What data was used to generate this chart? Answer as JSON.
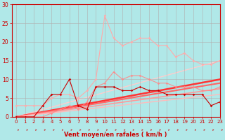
{
  "xlabel": "Vent moyen/en rafales ( km/h )",
  "bg_color": "#b0e8e8",
  "grid_color": "#b0b0b0",
  "xlim": [
    -0.5,
    23
  ],
  "ylim": [
    0,
    30
  ],
  "yticks": [
    0,
    5,
    10,
    15,
    20,
    25,
    30
  ],
  "xticks": [
    0,
    1,
    2,
    3,
    4,
    5,
    6,
    7,
    8,
    9,
    10,
    11,
    12,
    13,
    14,
    15,
    16,
    17,
    18,
    19,
    20,
    21,
    22,
    23
  ],
  "series": [
    {
      "x": [
        0,
        1,
        2,
        3,
        4,
        5,
        6,
        7,
        8,
        9,
        10,
        11,
        12,
        13,
        14,
        15,
        16,
        17,
        18,
        19,
        20,
        21,
        22,
        23
      ],
      "y": [
        0,
        0,
        0,
        3,
        6,
        6,
        10,
        3,
        2,
        8,
        8,
        8,
        7,
        7,
        8,
        7,
        7,
        6,
        6,
        6,
        6,
        6,
        3,
        4
      ],
      "color": "#cc0000",
      "lw": 0.8,
      "marker": "D",
      "ms": 1.8,
      "alpha": 1.0,
      "zorder": 3
    },
    {
      "x": [
        0,
        1,
        2,
        3,
        4,
        5,
        6,
        7,
        8,
        9,
        10,
        11,
        12,
        13,
        14,
        15,
        16,
        17,
        18,
        19,
        20,
        21,
        22,
        23
      ],
      "y": [
        3,
        3,
        3,
        3,
        5,
        6,
        6,
        5,
        7,
        10,
        27,
        21,
        19,
        20,
        21,
        21,
        19,
        19,
        16,
        17,
        15,
        14,
        14,
        15
      ],
      "color": "#ffaaaa",
      "lw": 0.8,
      "marker": "D",
      "ms": 1.8,
      "alpha": 1.0,
      "zorder": 2
    },
    {
      "x": [
        0,
        1,
        2,
        3,
        4,
        5,
        6,
        7,
        8,
        9,
        10,
        11,
        12,
        13,
        14,
        15,
        16,
        17,
        18,
        19,
        20,
        21,
        22,
        23
      ],
      "y": [
        0,
        0,
        0,
        0,
        1,
        2,
        3,
        2,
        4,
        8,
        9,
        12,
        10,
        11,
        11,
        10,
        9,
        9,
        8,
        8,
        8,
        7,
        7,
        8
      ],
      "color": "#ff8888",
      "lw": 0.8,
      "marker": "D",
      "ms": 1.8,
      "alpha": 0.9,
      "zorder": 2
    }
  ],
  "lines": [
    {
      "x0": 0,
      "y0": 0,
      "x1": 23,
      "y1": 10,
      "color": "#ff3333",
      "lw": 1.8,
      "zorder": 2
    },
    {
      "x0": 0,
      "y0": 0,
      "x1": 23,
      "y1": 9,
      "color": "#ff6666",
      "lw": 1.5,
      "zorder": 2
    },
    {
      "x0": 0,
      "y0": 0,
      "x1": 23,
      "y1": 7.5,
      "color": "#ff9999",
      "lw": 1.2,
      "zorder": 2
    },
    {
      "x0": 0,
      "y0": 0,
      "x1": 23,
      "y1": 6,
      "color": "#ffbbbb",
      "lw": 1.0,
      "zorder": 2
    },
    {
      "x0": 0,
      "y0": 0,
      "x1": 23,
      "y1": 15,
      "color": "#ffcccc",
      "lw": 1.0,
      "zorder": 1
    }
  ],
  "xlabel_color": "#cc0000",
  "tick_color": "#cc0000",
  "axis_color": "#cc0000",
  "xlabel_fontsize": 6.0,
  "tick_fontsize_x": 5.0,
  "tick_fontsize_y": 5.5
}
